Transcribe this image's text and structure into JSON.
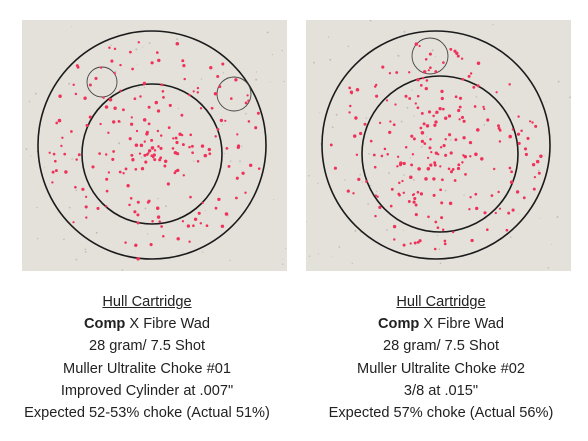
{
  "patterns": [
    {
      "heading": "Hull Cartridge",
      "brand": "Comp",
      "wad_suffix": " X Fibre Wad",
      "load": "28 gram/ 7.5 Shot",
      "choke_tube": "Muller Ultralite Choke #01",
      "constriction": "Improved Cylinder at .007\"",
      "result": "Expected 52-53% choke (Actual 51%)",
      "pellet_color": "#f0325a",
      "ring_color": "#1b1b1b"
    },
    {
      "heading": "Hull Cartridge ",
      "brand": "Comp",
      "wad_suffix": " X Fibre Wad",
      "load": "28 gram/ 7.5 Shot",
      "choke_tube": "Muller Ultralite Choke #02",
      "constriction": "3/8 at .015\"",
      "result": "Expected 57% choke (Actual 56%)",
      "pellet_color": "#f0325a",
      "ring_color": "#1b1b1b"
    }
  ]
}
